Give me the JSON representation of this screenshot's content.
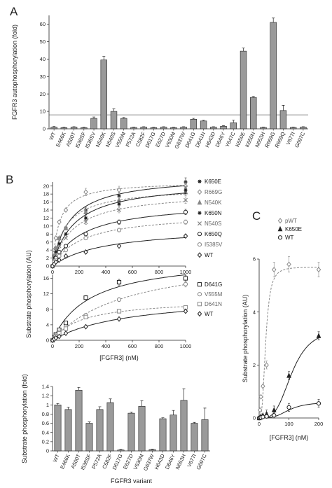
{
  "panels": {
    "a": "A",
    "b": "B",
    "c": "C"
  },
  "chart_data": [
    {
      "id": "A",
      "type": "bar",
      "ylabel": "FGFR3 autophosphorylation (fold)",
      "ylim": [
        0,
        65
      ],
      "yticks": [
        0,
        10,
        20,
        30,
        40,
        50,
        60
      ],
      "reference_line": 8,
      "categories": [
        "WT",
        "E466K",
        "A500T",
        "I538SF",
        "I538SV",
        "N540K",
        "N540S",
        "V555M",
        "P572A",
        "C582F",
        "D617G",
        "E627D",
        "V630M",
        "G637W",
        "D641G",
        "D641N",
        "H643D",
        "D646Y",
        "Y647C",
        "K650E",
        "K650N",
        "N653H",
        "R669G",
        "R669Q",
        "V677I",
        "G697C"
      ],
      "values": [
        1,
        0.7,
        1,
        0.7,
        6,
        39.5,
        10,
        6,
        0.8,
        1,
        0.7,
        1,
        0.7,
        1,
        5.5,
        4.5,
        1,
        1.5,
        3.5,
        44.5,
        18,
        0.8,
        61,
        10.5,
        0.8,
        1
      ],
      "errors": [
        0.3,
        0.2,
        0.2,
        0.2,
        0.8,
        2.0,
        1.5,
        0.5,
        0.2,
        0.2,
        0.2,
        0.2,
        0.2,
        0.2,
        0.5,
        0.4,
        0.2,
        0.3,
        1.5,
        1.8,
        0.5,
        0.2,
        2.5,
        3.0,
        0.2,
        0.2
      ]
    },
    {
      "id": "B-top",
      "type": "line",
      "xlim": [
        0,
        1000
      ],
      "ylim": [
        0,
        21
      ],
      "xticks": [
        0,
        200,
        400,
        600,
        800,
        1000
      ],
      "yticks": [
        0,
        2,
        4,
        6,
        8,
        10,
        12,
        14,
        16,
        18,
        20
      ],
      "x": [
        0,
        12.5,
        25,
        50,
        100,
        250,
        500,
        1000
      ],
      "series": [
        {
          "name": "K650E",
          "marker": "star",
          "dashed": false,
          "color": "#222222",
          "values": [
            0,
            2.5,
            4.5,
            7,
            9.5,
            14,
            17.5,
            21
          ]
        },
        {
          "name": "R669G",
          "marker": "diamond",
          "dashed": true,
          "color": "#888888",
          "values": [
            0,
            4,
            7,
            11,
            14,
            18.5,
            19,
            20
          ]
        },
        {
          "name": "N540K",
          "marker": "triangle",
          "dashed": true,
          "color": "#888888",
          "values": [
            0,
            2.5,
            4.5,
            7,
            9.5,
            13.5,
            16.5,
            18.5
          ]
        },
        {
          "name": "K650N",
          "marker": "star",
          "dashed": false,
          "color": "#222222",
          "values": [
            0,
            2,
            3.5,
            5.5,
            8,
            12,
            15.5,
            19
          ]
        },
        {
          "name": "N540S",
          "marker": "cross",
          "dashed": true,
          "color": "#888888",
          "values": [
            0,
            1.5,
            3,
            5,
            7,
            11,
            14,
            16.5
          ]
        },
        {
          "name": "K650Q",
          "marker": "circle",
          "dashed": false,
          "color": "#222222",
          "values": [
            0,
            1,
            2,
            3.5,
            5,
            8,
            11,
            13.5
          ]
        },
        {
          "name": "I5385V",
          "marker": "circle",
          "dashed": true,
          "color": "#888888",
          "values": [
            0,
            1,
            1.5,
            2.5,
            4,
            7,
            9,
            11
          ]
        },
        {
          "name": "WT",
          "marker": "diamond",
          "dashed": false,
          "color": "#222222",
          "values": [
            0,
            0.5,
            1,
            1.5,
            2.5,
            3.5,
            5,
            7.5
          ]
        }
      ]
    },
    {
      "id": "B-middle",
      "type": "line",
      "xlabel": "[FGFR3]  (nM)",
      "xlim": [
        0,
        1000
      ],
      "ylim": [
        0,
        17
      ],
      "xticks": [
        0,
        200,
        400,
        600,
        800,
        1000
      ],
      "yticks": [
        0,
        4,
        8,
        12,
        16
      ],
      "x": [
        0,
        12.5,
        25,
        50,
        100,
        250,
        500,
        1000
      ],
      "series": [
        {
          "name": "D641G",
          "marker": "square",
          "dashed": false,
          "color": "#222222",
          "values": [
            0,
            0.8,
            1.5,
            2.7,
            4.5,
            11,
            15,
            16
          ]
        },
        {
          "name": "V555M",
          "marker": "circle",
          "dashed": true,
          "color": "#888888",
          "values": [
            0,
            0.6,
            1.2,
            2.2,
            3.5,
            6.5,
            10.5,
            14.5
          ]
        },
        {
          "name": "D641N",
          "marker": "square",
          "dashed": true,
          "color": "#888888",
          "values": [
            0,
            0.5,
            1,
            1.8,
            3,
            6,
            7.5,
            8.5
          ]
        },
        {
          "name": "WT",
          "marker": "diamond",
          "dashed": false,
          "color": "#222222",
          "values": [
            0,
            0.3,
            0.6,
            1,
            1.8,
            3.5,
            5.5,
            7.5
          ]
        }
      ]
    },
    {
      "id": "B-bottom",
      "type": "bar",
      "xlabel": "FGFR3 variant",
      "ylabel": "Substrate phosphorylation (fold)",
      "ylim": [
        0,
        1.4
      ],
      "yticks": [
        0,
        0.2,
        0.4,
        0.6,
        0.8,
        1,
        1.2,
        1.4
      ],
      "categories": [
        "WT",
        "E466K",
        "A500T",
        "I538SF",
        "P572A",
        "C582F",
        "D617G",
        "E627D",
        "V630M",
        "G637W",
        "H643D",
        "D646Y",
        "N653H",
        "V677I",
        "G697C"
      ],
      "values": [
        1.0,
        0.9,
        1.32,
        0.6,
        0.9,
        1.05,
        0.02,
        0.82,
        0.97,
        0.03,
        0.7,
        0.78,
        1.1,
        0.6,
        0.68
      ],
      "errors": [
        0.03,
        0.05,
        0.06,
        0.03,
        0.06,
        0.08,
        0.01,
        0.02,
        0.12,
        0.01,
        0.02,
        0.1,
        0.25,
        0.02,
        0.25
      ]
    },
    {
      "id": "C",
      "type": "line",
      "ylabel": "Substrate phosphorylation (AU)",
      "xlabel": "[FGFR3]  (nM)",
      "xlim": [
        0,
        200
      ],
      "ylim": [
        0,
        6
      ],
      "xticks": [
        0,
        100,
        200
      ],
      "yticks": [
        0,
        2,
        4,
        6
      ],
      "series": [
        {
          "name": "pWT",
          "marker": "diamond",
          "dashed": true,
          "color": "#888888",
          "x": [
            0,
            3,
            6,
            12.5,
            25,
            50,
            100,
            200
          ],
          "values": [
            0,
            0.3,
            0.8,
            1.2,
            2.0,
            5.6,
            5.8,
            5.6
          ]
        },
        {
          "name": "K650E",
          "marker": "triangle",
          "dashed": false,
          "color": "#222222",
          "x": [
            0,
            3,
            6,
            12.5,
            25,
            50,
            100,
            200
          ],
          "values": [
            0,
            0.02,
            0.05,
            0.1,
            0.15,
            0.3,
            1.6,
            3.1
          ]
        },
        {
          "name": "WT",
          "marker": "circle",
          "dashed": false,
          "color": "#222222",
          "x": [
            0,
            3,
            6,
            12.5,
            25,
            50,
            100,
            200
          ],
          "values": [
            0,
            0.01,
            0.02,
            0.04,
            0.06,
            0.1,
            0.4,
            0.55
          ]
        }
      ]
    }
  ],
  "shared_b_ylabel": "Substrate phosphorylation (AU)"
}
